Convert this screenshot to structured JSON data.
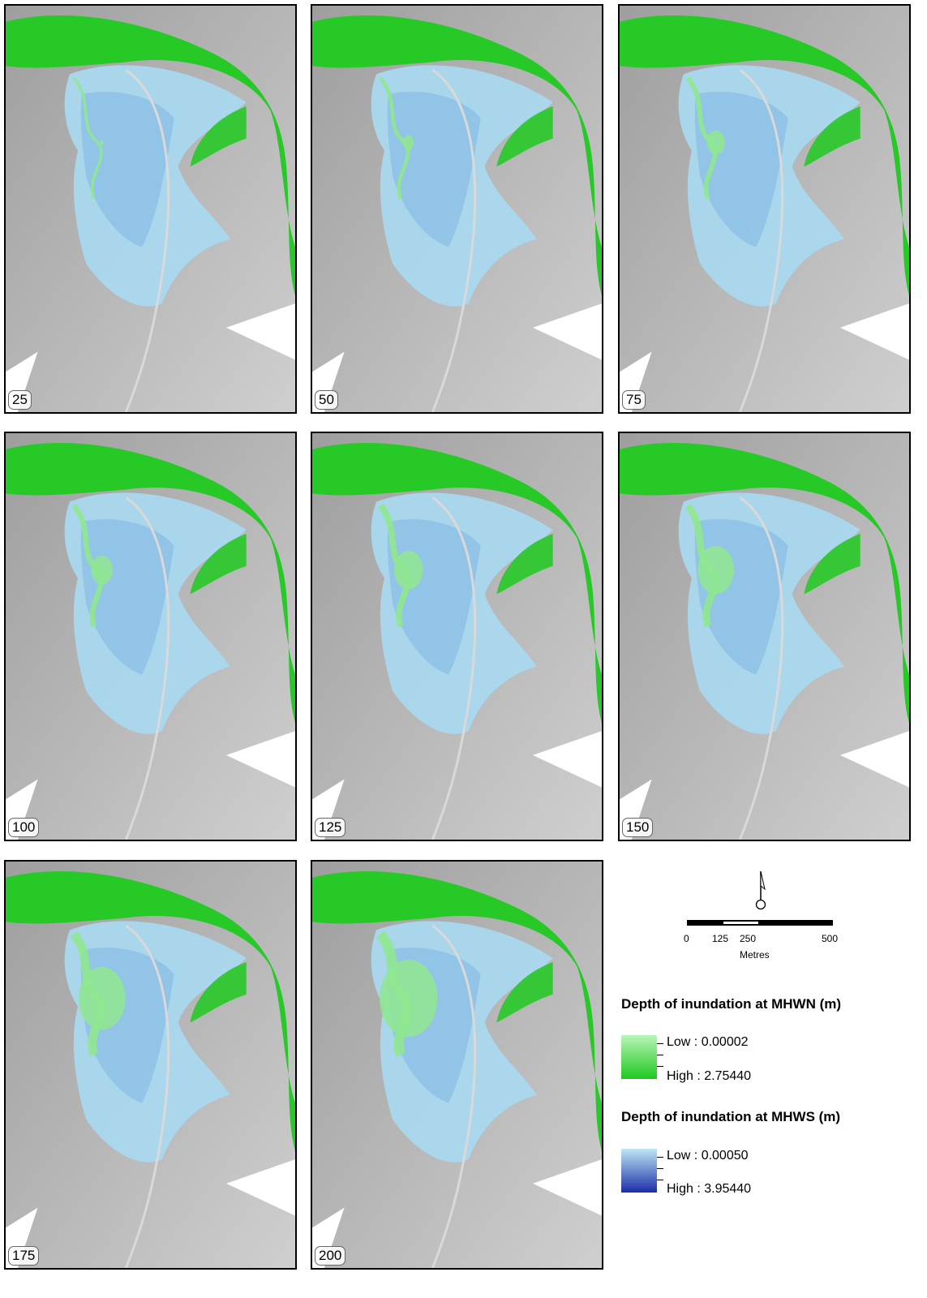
{
  "panels": [
    {
      "label": "25",
      "fraction": 0.05
    },
    {
      "label": "50",
      "fraction": 0.15
    },
    {
      "label": "75",
      "fraction": 0.25
    },
    {
      "label": "100",
      "fraction": 0.3
    },
    {
      "label": "125",
      "fraction": 0.4
    },
    {
      "label": "150",
      "fraction": 0.5
    },
    {
      "label": "175",
      "fraction": 0.65
    },
    {
      "label": "200",
      "fraction": 0.8
    }
  ],
  "scale": {
    "ticks": [
      "0",
      "125",
      "250",
      "500"
    ],
    "units": "Metres"
  },
  "legend": {
    "mhwn": {
      "title": "Depth of inundation at MHWN (m)",
      "low": "Low : 0.00002",
      "high": "High : 2.75440",
      "color_low": "#b8f5b8",
      "color_high": "#1ec81e"
    },
    "mhws": {
      "title": "Depth of inundation at MHWS (m)",
      "low": "Low : 0.00050",
      "high": "High : 3.95440",
      "color_low": "#bfe6f5",
      "color_high": "#1a2fa8"
    }
  },
  "colors": {
    "terrain": "#bdbdbd",
    "river": "#27c927",
    "marsh_light": "#a9d8ee",
    "marsh_mid": "#7fb6e4",
    "channel_green": "#8fe88f"
  }
}
